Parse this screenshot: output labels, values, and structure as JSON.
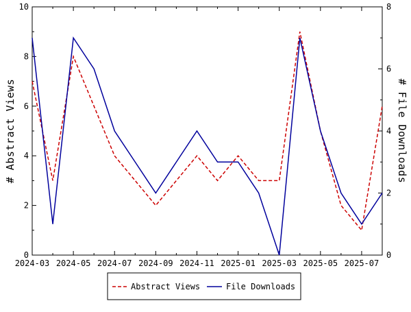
{
  "chart_data": {
    "type": "line",
    "title": "",
    "x": [
      "2024-03",
      "2024-04",
      "2024-05",
      "2024-06",
      "2024-07",
      "2024-08",
      "2024-09",
      "2024-10",
      "2024-11",
      "2024-12",
      "2025-01",
      "2025-02",
      "2025-03",
      "2025-04",
      "2025-05",
      "2025-06",
      "2025-07",
      "2025-08"
    ],
    "x_tick_labels": [
      "2024-03",
      "2024-05",
      "2024-07",
      "2024-09",
      "2024-11",
      "2025-01",
      "2025-03",
      "2025-05",
      "2025-07"
    ],
    "ylabel_left": "# Abstract Views",
    "ylabel_right": "# File Downloads",
    "ylim_left": [
      0,
      10
    ],
    "ylim_right": [
      0,
      8
    ],
    "yticks_left": [
      "0",
      "2",
      "4",
      "6",
      "8",
      "10"
    ],
    "yticks_right": [
      "0",
      "2",
      "4",
      "6",
      "8"
    ],
    "grid": false,
    "legend_position": "bottom-center",
    "series": [
      {
        "name": "Abstract Views",
        "axis": "left",
        "color": "#cc0000",
        "style": "dashed",
        "values": [
          7,
          3,
          8,
          6,
          4,
          3,
          2,
          3,
          4,
          3,
          4,
          3,
          3,
          9,
          5,
          2,
          1,
          6
        ]
      },
      {
        "name": "File Downloads",
        "axis": "right",
        "color": "#00009c",
        "style": "solid",
        "values": [
          7,
          1,
          7,
          6,
          4,
          3,
          2,
          3,
          4,
          3,
          3,
          2,
          0,
          7,
          4,
          2,
          1,
          2
        ]
      }
    ]
  }
}
